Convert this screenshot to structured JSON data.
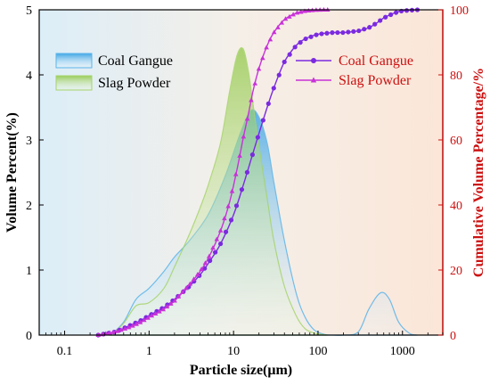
{
  "chart_data": {
    "type": "area+line",
    "xlabel": "Particle size(μm)",
    "ylabel_left": "Volume Percent(%)",
    "ylabel_right": "Cumulative Volume Percentage/%",
    "x_scale": "log",
    "xlim": [
      0.05,
      3000
    ],
    "ylim_left": [
      0,
      5
    ],
    "ylim_right": [
      0,
      100
    ],
    "x_ticks": [
      0.1,
      1,
      10,
      100,
      1000
    ],
    "x_tick_labels": [
      "0.1",
      "1",
      "10",
      "100",
      "1000"
    ],
    "y_ticks_left": [
      0,
      1,
      2,
      3,
      4,
      5
    ],
    "y_tick_labels_left": [
      "0",
      "1",
      "2",
      "3",
      "4",
      "5"
    ],
    "y_ticks_right": [
      0,
      20,
      40,
      60,
      80,
      100
    ],
    "y_tick_labels_right": [
      "0",
      "20",
      "40",
      "60",
      "80",
      "100"
    ],
    "legend_left": [
      "Coal Gangue",
      "Slag Powder"
    ],
    "legend_right": [
      "Coal Gangue",
      "Slag Powder"
    ],
    "distribution_series": [
      {
        "name": "Coal Gangue",
        "color": "#3aa8e6",
        "x": [
          0.35,
          0.5,
          0.7,
          1,
          1.5,
          2,
          3,
          5,
          8,
          12,
          16,
          20,
          25,
          30,
          40,
          55,
          70,
          90,
          120,
          150,
          200,
          300,
          400,
          550,
          700,
          900,
          1200,
          1500
        ],
        "y": [
          0,
          0.2,
          0.55,
          0.72,
          0.98,
          1.2,
          1.45,
          1.85,
          2.45,
          3.1,
          3.45,
          3.35,
          2.95,
          2.35,
          1.45,
          0.65,
          0.28,
          0.08,
          0.01,
          0,
          0,
          0.05,
          0.4,
          0.65,
          0.55,
          0.2,
          0.03,
          0
        ]
      },
      {
        "name": "Slag Powder",
        "color": "#8cc63f",
        "x": [
          0.35,
          0.5,
          0.7,
          1,
          1.5,
          2,
          3,
          4,
          5,
          7,
          9,
          11,
          13,
          15,
          17,
          20,
          25,
          30,
          40,
          55,
          70,
          90,
          110,
          130
        ],
        "y": [
          0,
          0.18,
          0.45,
          0.5,
          0.72,
          1.05,
          1.55,
          1.95,
          2.3,
          2.95,
          3.75,
          4.3,
          4.4,
          4.05,
          3.55,
          2.9,
          2.1,
          1.45,
          0.75,
          0.3,
          0.1,
          0.03,
          0.01,
          0
        ]
      }
    ],
    "cumulative_series": [
      {
        "name": "Coal Gangue",
        "color": "#7b2ae0",
        "marker": "circle",
        "x": [
          0.25,
          0.4,
          0.6,
          0.8,
          1,
          1.5,
          2,
          3,
          4,
          5,
          7,
          10,
          13,
          17,
          20,
          25,
          30,
          40,
          55,
          70,
          100,
          150,
          200,
          300,
          400,
          500,
          600,
          800,
          1000,
          1500
        ],
        "y": [
          0,
          1,
          3,
          4.5,
          6,
          8.5,
          11,
          15,
          18.5,
          22,
          28,
          37,
          46,
          56,
          62,
          70,
          76,
          84,
          89,
          91,
          92.5,
          93,
          93,
          93.5,
          94.5,
          96,
          97.5,
          99,
          99.7,
          100
        ]
      },
      {
        "name": "Slag Powder",
        "color": "#c832d8",
        "marker": "triangle",
        "x": [
          0.25,
          0.4,
          0.6,
          0.8,
          1,
          1.5,
          2,
          3,
          4,
          5,
          7,
          9,
          11,
          13,
          15,
          17,
          20,
          25,
          30,
          40,
          55,
          70,
          90,
          110,
          130
        ],
        "y": [
          0,
          1,
          2.5,
          4,
          5.5,
          8,
          10.5,
          15.5,
          19.5,
          23.5,
          32,
          41,
          51,
          60.5,
          68,
          75,
          82,
          89,
          93,
          97,
          99,
          99.6,
          99.9,
          100,
          100
        ]
      }
    ]
  }
}
